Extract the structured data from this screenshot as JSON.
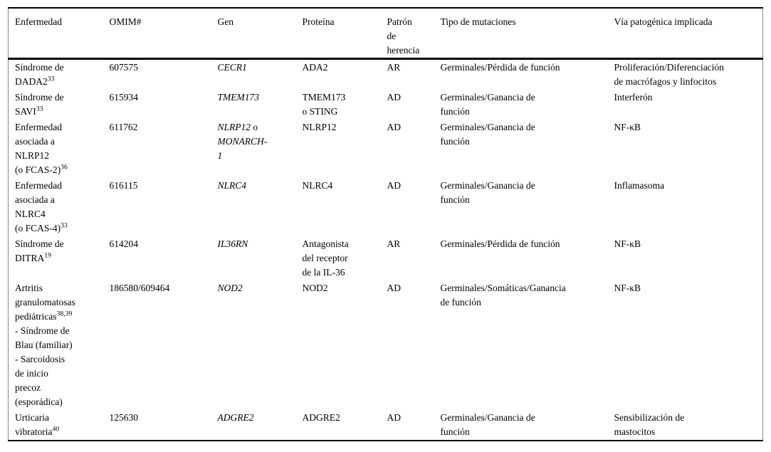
{
  "table": {
    "columns": [
      {
        "label": "Enfermedad"
      },
      {
        "label": "OMIM#"
      },
      {
        "label": "Gen"
      },
      {
        "label": "Proteína"
      },
      {
        "label": [
          {
            "t": "Patrón"
          },
          {
            "br": true
          },
          {
            "t": "de"
          },
          {
            "br": true
          },
          {
            "t": "herencia"
          }
        ]
      },
      {
        "label": "Tipo de mutaciones"
      },
      {
        "label": "Vía patogénica implicada"
      }
    ],
    "rows": [
      {
        "cells": [
          [
            {
              "t": "Síndrome de"
            },
            {
              "br": true
            },
            {
              "t": "DADA2"
            },
            {
              "t": "33",
              "s": "sup"
            }
          ],
          "607575",
          [
            {
              "t": "CECR1",
              "s": "i"
            }
          ],
          "ADA2",
          "AR",
          "Germinales/Pérdida de función",
          [
            {
              "t": "Proliferación/Diferenciación"
            },
            {
              "br": true
            },
            {
              "t": "de macrófagos y linfocitos"
            }
          ]
        ]
      },
      {
        "cells": [
          [
            {
              "t": "Síndrome de"
            },
            {
              "br": true
            },
            {
              "t": "SAVI"
            },
            {
              "t": "33",
              "s": "sup"
            }
          ],
          "615934",
          [
            {
              "t": "TMEM173",
              "s": "i"
            }
          ],
          [
            {
              "t": "TMEM173"
            },
            {
              "br": true
            },
            {
              "t": "o STING"
            }
          ],
          "AD",
          [
            {
              "t": "Germinales/Ganancia de"
            },
            {
              "br": true
            },
            {
              "t": "función"
            }
          ],
          "Interferón"
        ]
      },
      {
        "cells": [
          [
            {
              "t": "Enfermedad"
            },
            {
              "br": true
            },
            {
              "t": "asociada a"
            },
            {
              "br": true
            },
            {
              "t": "NLRP12"
            },
            {
              "br": true
            },
            {
              "t": "(o FCAS-2)"
            },
            {
              "t": "36",
              "s": "sup"
            }
          ],
          "611762",
          [
            {
              "t": "NLRP12",
              "s": "i"
            },
            {
              "t": " o"
            },
            {
              "br": true
            },
            {
              "t": "MONARCH-",
              "s": "i"
            },
            {
              "br": true
            },
            {
              "t": "1",
              "s": "i"
            }
          ],
          "NLRP12",
          "AD",
          [
            {
              "t": "Germinales/Ganancia de"
            },
            {
              "br": true
            },
            {
              "t": "función"
            }
          ],
          "NF-κB"
        ]
      },
      {
        "cells": [
          [
            {
              "t": "Enfermedad"
            },
            {
              "br": true
            },
            {
              "t": "asociada a"
            },
            {
              "br": true
            },
            {
              "t": "NLRC4"
            },
            {
              "br": true
            },
            {
              "t": "(o FCAS-4)"
            },
            {
              "t": "33",
              "s": "sup"
            }
          ],
          "616115",
          [
            {
              "t": "NLRC4",
              "s": "i"
            }
          ],
          "NLRC4",
          "AD",
          [
            {
              "t": "Germinales/Ganancia de"
            },
            {
              "br": true
            },
            {
              "t": "función"
            }
          ],
          "Inflamasoma"
        ]
      },
      {
        "cells": [
          [
            {
              "t": "Síndrome de"
            },
            {
              "br": true
            },
            {
              "t": "DITRA"
            },
            {
              "t": "19",
              "s": "sup"
            }
          ],
          "614204",
          [
            {
              "t": "IL36RN",
              "s": "i"
            }
          ],
          [
            {
              "t": "Antagonista"
            },
            {
              "br": true
            },
            {
              "t": "del receptor"
            },
            {
              "br": true
            },
            {
              "t": "de la IL-36"
            }
          ],
          "AR",
          "Germinales/Pérdida de función",
          "NF-κB"
        ]
      },
      {
        "cells": [
          [
            {
              "t": "Artritis"
            },
            {
              "br": true
            },
            {
              "t": "granulomatosas"
            },
            {
              "br": true
            },
            {
              "t": "pediátricas"
            },
            {
              "t": "38,39",
              "s": "sup"
            },
            {
              "br": true
            },
            {
              "t": "- Síndrome de"
            },
            {
              "br": true
            },
            {
              "t": "Blau (familiar)"
            },
            {
              "br": true
            },
            {
              "t": "- Sarcoidosis"
            },
            {
              "br": true
            },
            {
              "t": "de inicio"
            },
            {
              "br": true
            },
            {
              "t": "precoz"
            },
            {
              "br": true
            },
            {
              "t": "(esporádica)"
            }
          ],
          "186580/609464",
          [
            {
              "t": "NOD2",
              "s": "i"
            }
          ],
          "NOD2",
          "AD",
          [
            {
              "t": "Germinales/Somáticas/Ganancia"
            },
            {
              "br": true
            },
            {
              "t": "de función"
            }
          ],
          "NF-κB"
        ]
      },
      {
        "cells": [
          [
            {
              "t": "Urticaria"
            },
            {
              "br": true
            },
            {
              "t": "vibratoria"
            },
            {
              "t": "40",
              "s": "sup"
            }
          ],
          "125630",
          [
            {
              "t": "ADGRE2",
              "s": "i"
            }
          ],
          "ADGRE2",
          "AD",
          [
            {
              "t": "Germinales/Ganancia de"
            },
            {
              "br": true
            },
            {
              "t": "función"
            }
          ],
          [
            {
              "t": "Sensibilización de"
            },
            {
              "br": true
            },
            {
              "t": "mastocitos"
            }
          ]
        ]
      }
    ]
  }
}
